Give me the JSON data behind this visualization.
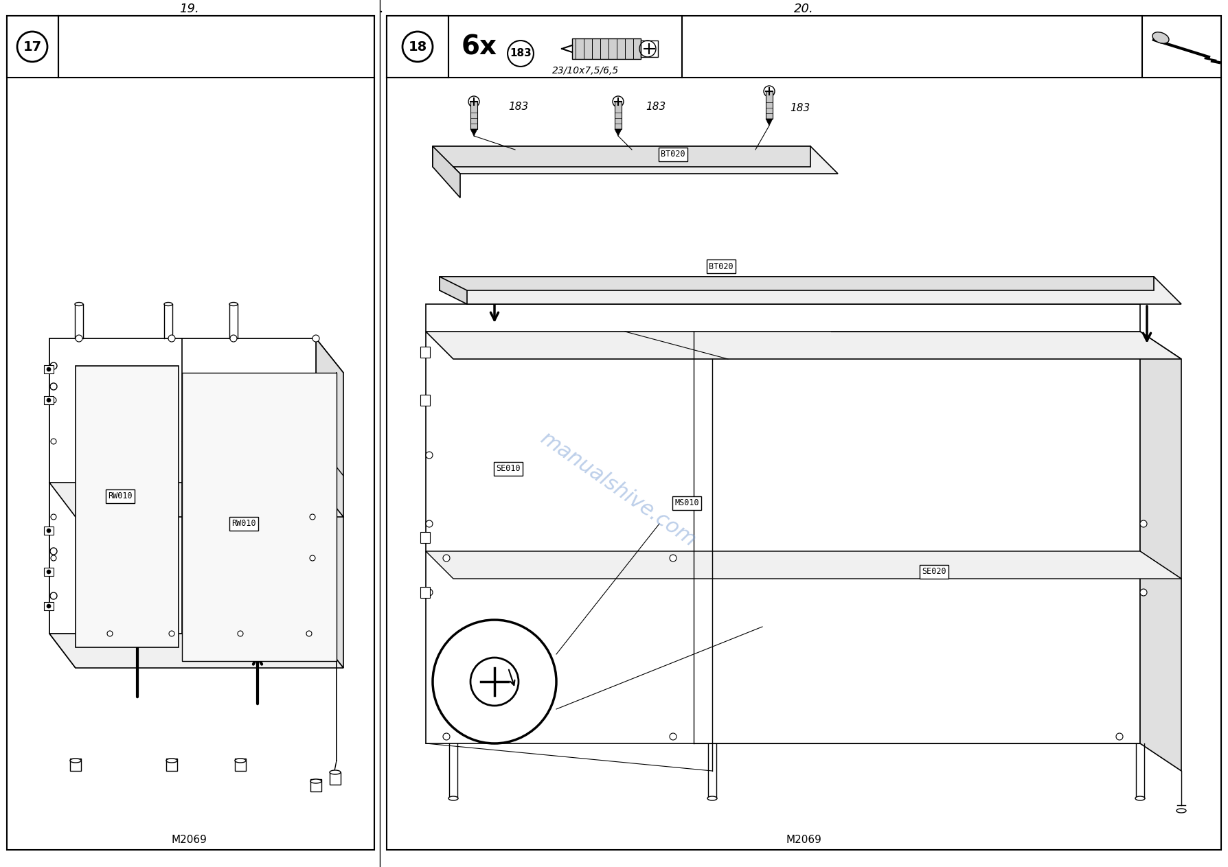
{
  "bg_color": "#ffffff",
  "line_color": "#000000",
  "light_gray": "#e8e8e8",
  "mid_gray": "#d0d0d0",
  "watermark_color": "#7b9fd4",
  "page_numbers": [
    "19.",
    "20."
  ],
  "step_numbers": [
    "17",
    "18"
  ],
  "part_labels_left": [
    "RW010",
    "RW010"
  ],
  "part_labels_right": [
    "BT020",
    "BT020",
    "SE010",
    "MS010",
    "SE020"
  ],
  "screw_label": "6x",
  "screw_subscript": "183",
  "screw_dim": "23/10x7,5/6,5",
  "bottom_text": "M2069",
  "watermark": "manualshive.com",
  "italic_labels": [
    "183",
    "183",
    "183"
  ]
}
